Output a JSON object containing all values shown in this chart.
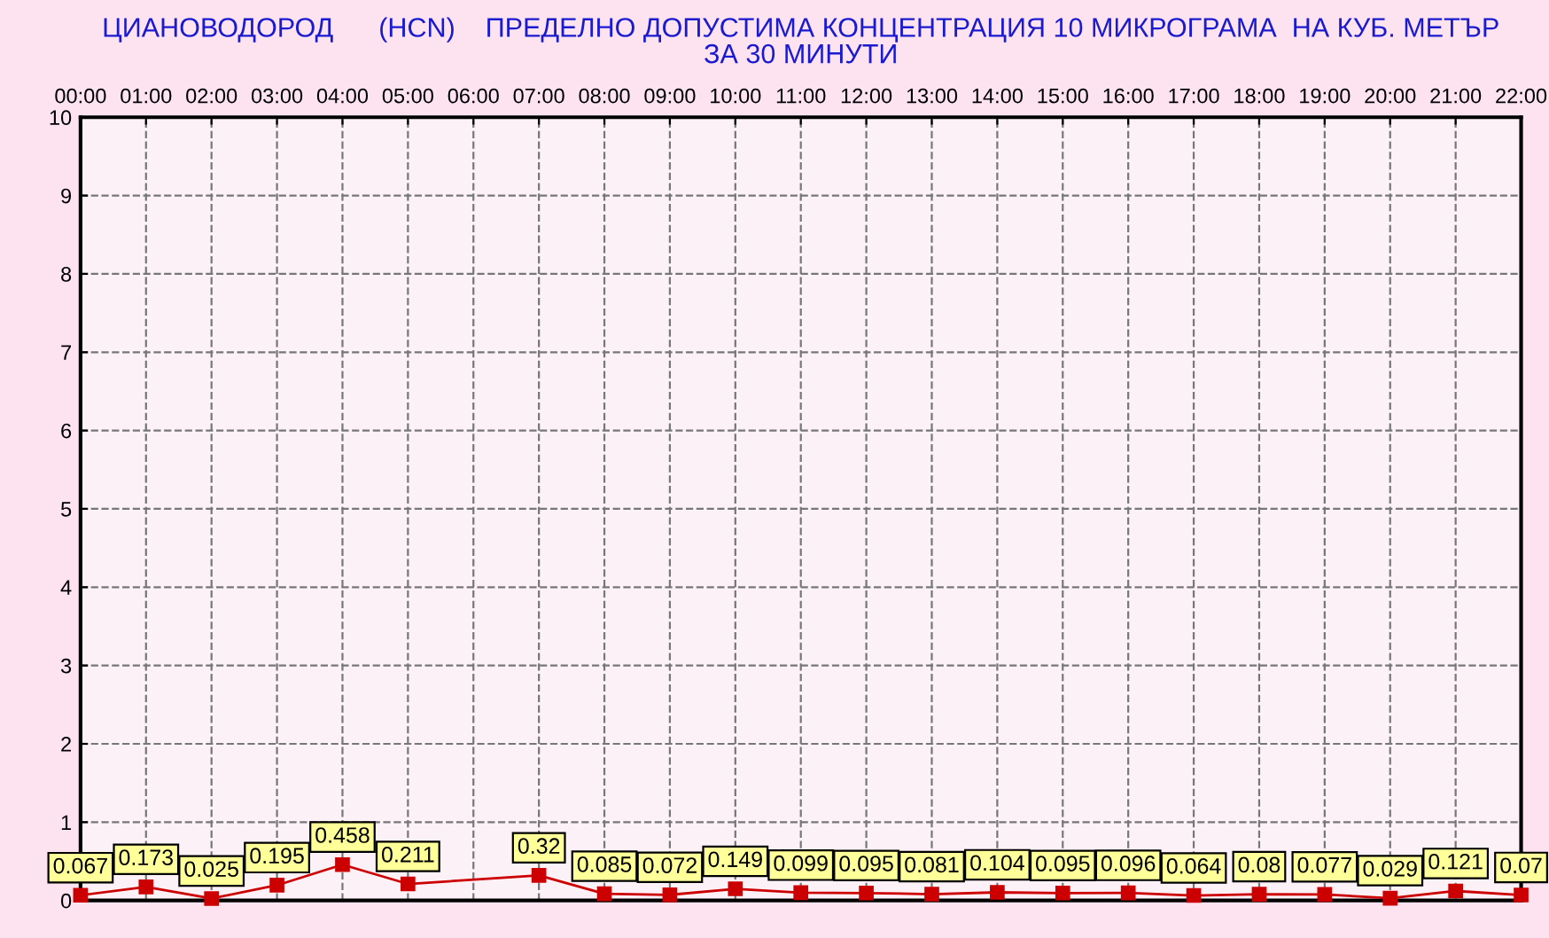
{
  "chart_data": {
    "type": "line",
    "title": "ЦИАНОВОДОРОД      (HCN)    ПРЕДЕЛНО ДОПУСТИМА КОНЦЕНТРАЦИЯ 10 МИКРОГРАМА  НА КУБ. МЕТЪР\nЗА 30 МИНУТИ",
    "x": [
      0,
      1,
      2,
      3,
      4,
      5,
      7,
      8,
      9,
      10,
      11,
      12,
      13,
      14,
      15,
      16,
      17,
      18,
      19,
      20,
      21,
      22
    ],
    "series": [
      {
        "color": "#cc0000",
        "values": [
          0.067,
          0.173,
          0.025,
          0.195,
          0.458,
          0.211,
          0.32,
          0.085,
          0.072,
          0.149,
          0.099,
          0.095,
          0.081,
          0.104,
          0.095,
          0.096,
          0.064,
          0.08,
          0.077,
          0.029,
          0.121,
          0.07
        ]
      }
    ],
    "xlim": [
      0,
      22
    ],
    "xticks": [
      {
        "value": 0,
        "label": "00:00"
      },
      {
        "value": 1,
        "label": "01:00"
      },
      {
        "value": 2,
        "label": "02:00"
      },
      {
        "value": 3,
        "label": "03:00"
      },
      {
        "value": 4,
        "label": "04:00"
      },
      {
        "value": 5,
        "label": "05:00"
      },
      {
        "value": 6,
        "label": "06:00"
      },
      {
        "value": 7,
        "label": "07:00"
      },
      {
        "value": 8,
        "label": "08:00"
      },
      {
        "value": 9,
        "label": "09:00"
      },
      {
        "value": 10,
        "label": "10:00"
      },
      {
        "value": 11,
        "label": "11:00"
      },
      {
        "value": 12,
        "label": "12:00"
      },
      {
        "value": 13,
        "label": "13:00"
      },
      {
        "value": 14,
        "label": "14:00"
      },
      {
        "value": 15,
        "label": "15:00"
      },
      {
        "value": 16,
        "label": "16:00"
      },
      {
        "value": 17,
        "label": "17:00"
      },
      {
        "value": 18,
        "label": "18:00"
      },
      {
        "value": 19,
        "label": "19:00"
      },
      {
        "value": 20,
        "label": "20:00"
      },
      {
        "value": 21,
        "label": "21:00"
      },
      {
        "value": 22,
        "label": "22:00"
      }
    ],
    "ylim": [
      0,
      10
    ],
    "yticks": [
      0,
      1,
      2,
      3,
      4,
      5,
      6,
      7,
      8,
      9,
      10
    ],
    "grid": true,
    "marker": "square",
    "line_style": "solid",
    "data_labels": true
  }
}
